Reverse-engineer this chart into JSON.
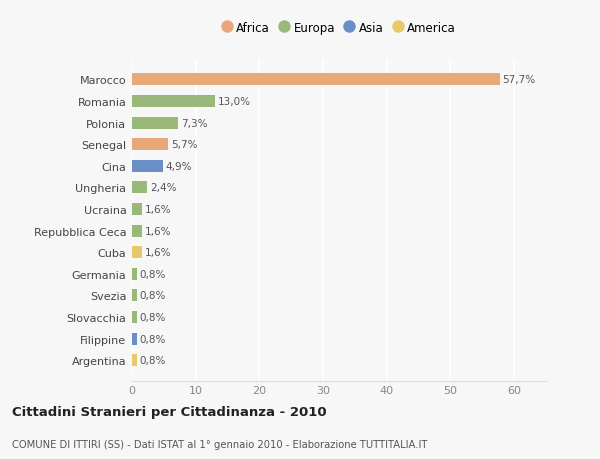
{
  "categories": [
    "Argentina",
    "Filippine",
    "Slovacchia",
    "Svezia",
    "Germania",
    "Cuba",
    "Repubblica Ceca",
    "Ucraina",
    "Ungheria",
    "Cina",
    "Senegal",
    "Polonia",
    "Romania",
    "Marocco"
  ],
  "values": [
    0.8,
    0.8,
    0.8,
    0.8,
    0.8,
    1.6,
    1.6,
    1.6,
    2.4,
    4.9,
    5.7,
    7.3,
    13.0,
    57.7
  ],
  "labels": [
    "0,8%",
    "0,8%",
    "0,8%",
    "0,8%",
    "0,8%",
    "1,6%",
    "1,6%",
    "1,6%",
    "2,4%",
    "4,9%",
    "5,7%",
    "7,3%",
    "13,0%",
    "57,7%"
  ],
  "colors": [
    "#e8c96a",
    "#6b8ec7",
    "#9ab87a",
    "#9ab87a",
    "#9ab87a",
    "#e8c96a",
    "#9ab87a",
    "#9ab87a",
    "#9ab87a",
    "#6b8ec7",
    "#e8a87a",
    "#9ab87a",
    "#9ab87a",
    "#e8a87a"
  ],
  "continent_colors": {
    "Africa": "#e8a87a",
    "Europa": "#9ab87a",
    "Asia": "#6b8ec7",
    "America": "#e8c96a"
  },
  "xlim": [
    0,
    65
  ],
  "xticks": [
    0,
    10,
    20,
    30,
    40,
    50,
    60
  ],
  "title": "Cittadini Stranieri per Cittadinanza - 2010",
  "subtitle": "COMUNE DI ITTIRI (SS) - Dati ISTAT al 1° gennaio 2010 - Elaborazione TUTTITALIA.IT",
  "background_color": "#f7f7f7",
  "grid_color": "#ffffff",
  "bar_height": 0.55
}
